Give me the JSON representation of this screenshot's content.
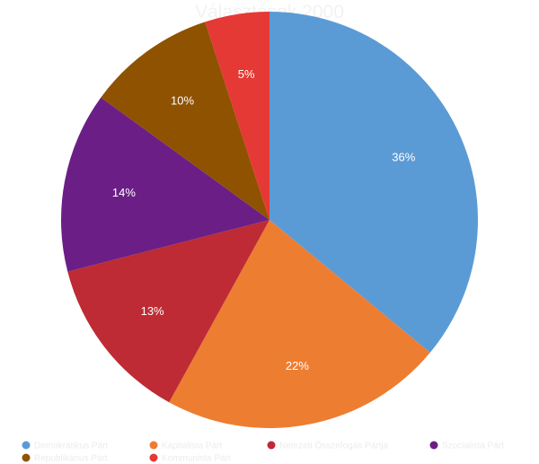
{
  "chart_data": {
    "type": "pie",
    "title": "Választások 2000",
    "title_color": "#f2f2f2",
    "label_color": "#ffffff",
    "legend_text_color": "#ececec",
    "legend_position": "bottom",
    "slices": [
      {
        "name": "Demokratikus Párt",
        "value": 36,
        "label": "36%",
        "color": "#5b9bd5"
      },
      {
        "name": "Kapitalista Párt",
        "value": 22,
        "label": "22%",
        "color": "#ed7d31"
      },
      {
        "name": "Nemzeti Összefogás Pártja",
        "value": 13,
        "label": "13%",
        "color": "#be2b34"
      },
      {
        "name": "Szocialista Párt",
        "value": 14,
        "label": "14%",
        "color": "#6b1f86"
      },
      {
        "name": "Republikánus Párt",
        "value": 10,
        "label": "10%",
        "color": "#8f5200"
      },
      {
        "name": "Kommunista Párt",
        "value": 5,
        "label": "5%",
        "color": "#e53935"
      }
    ]
  }
}
